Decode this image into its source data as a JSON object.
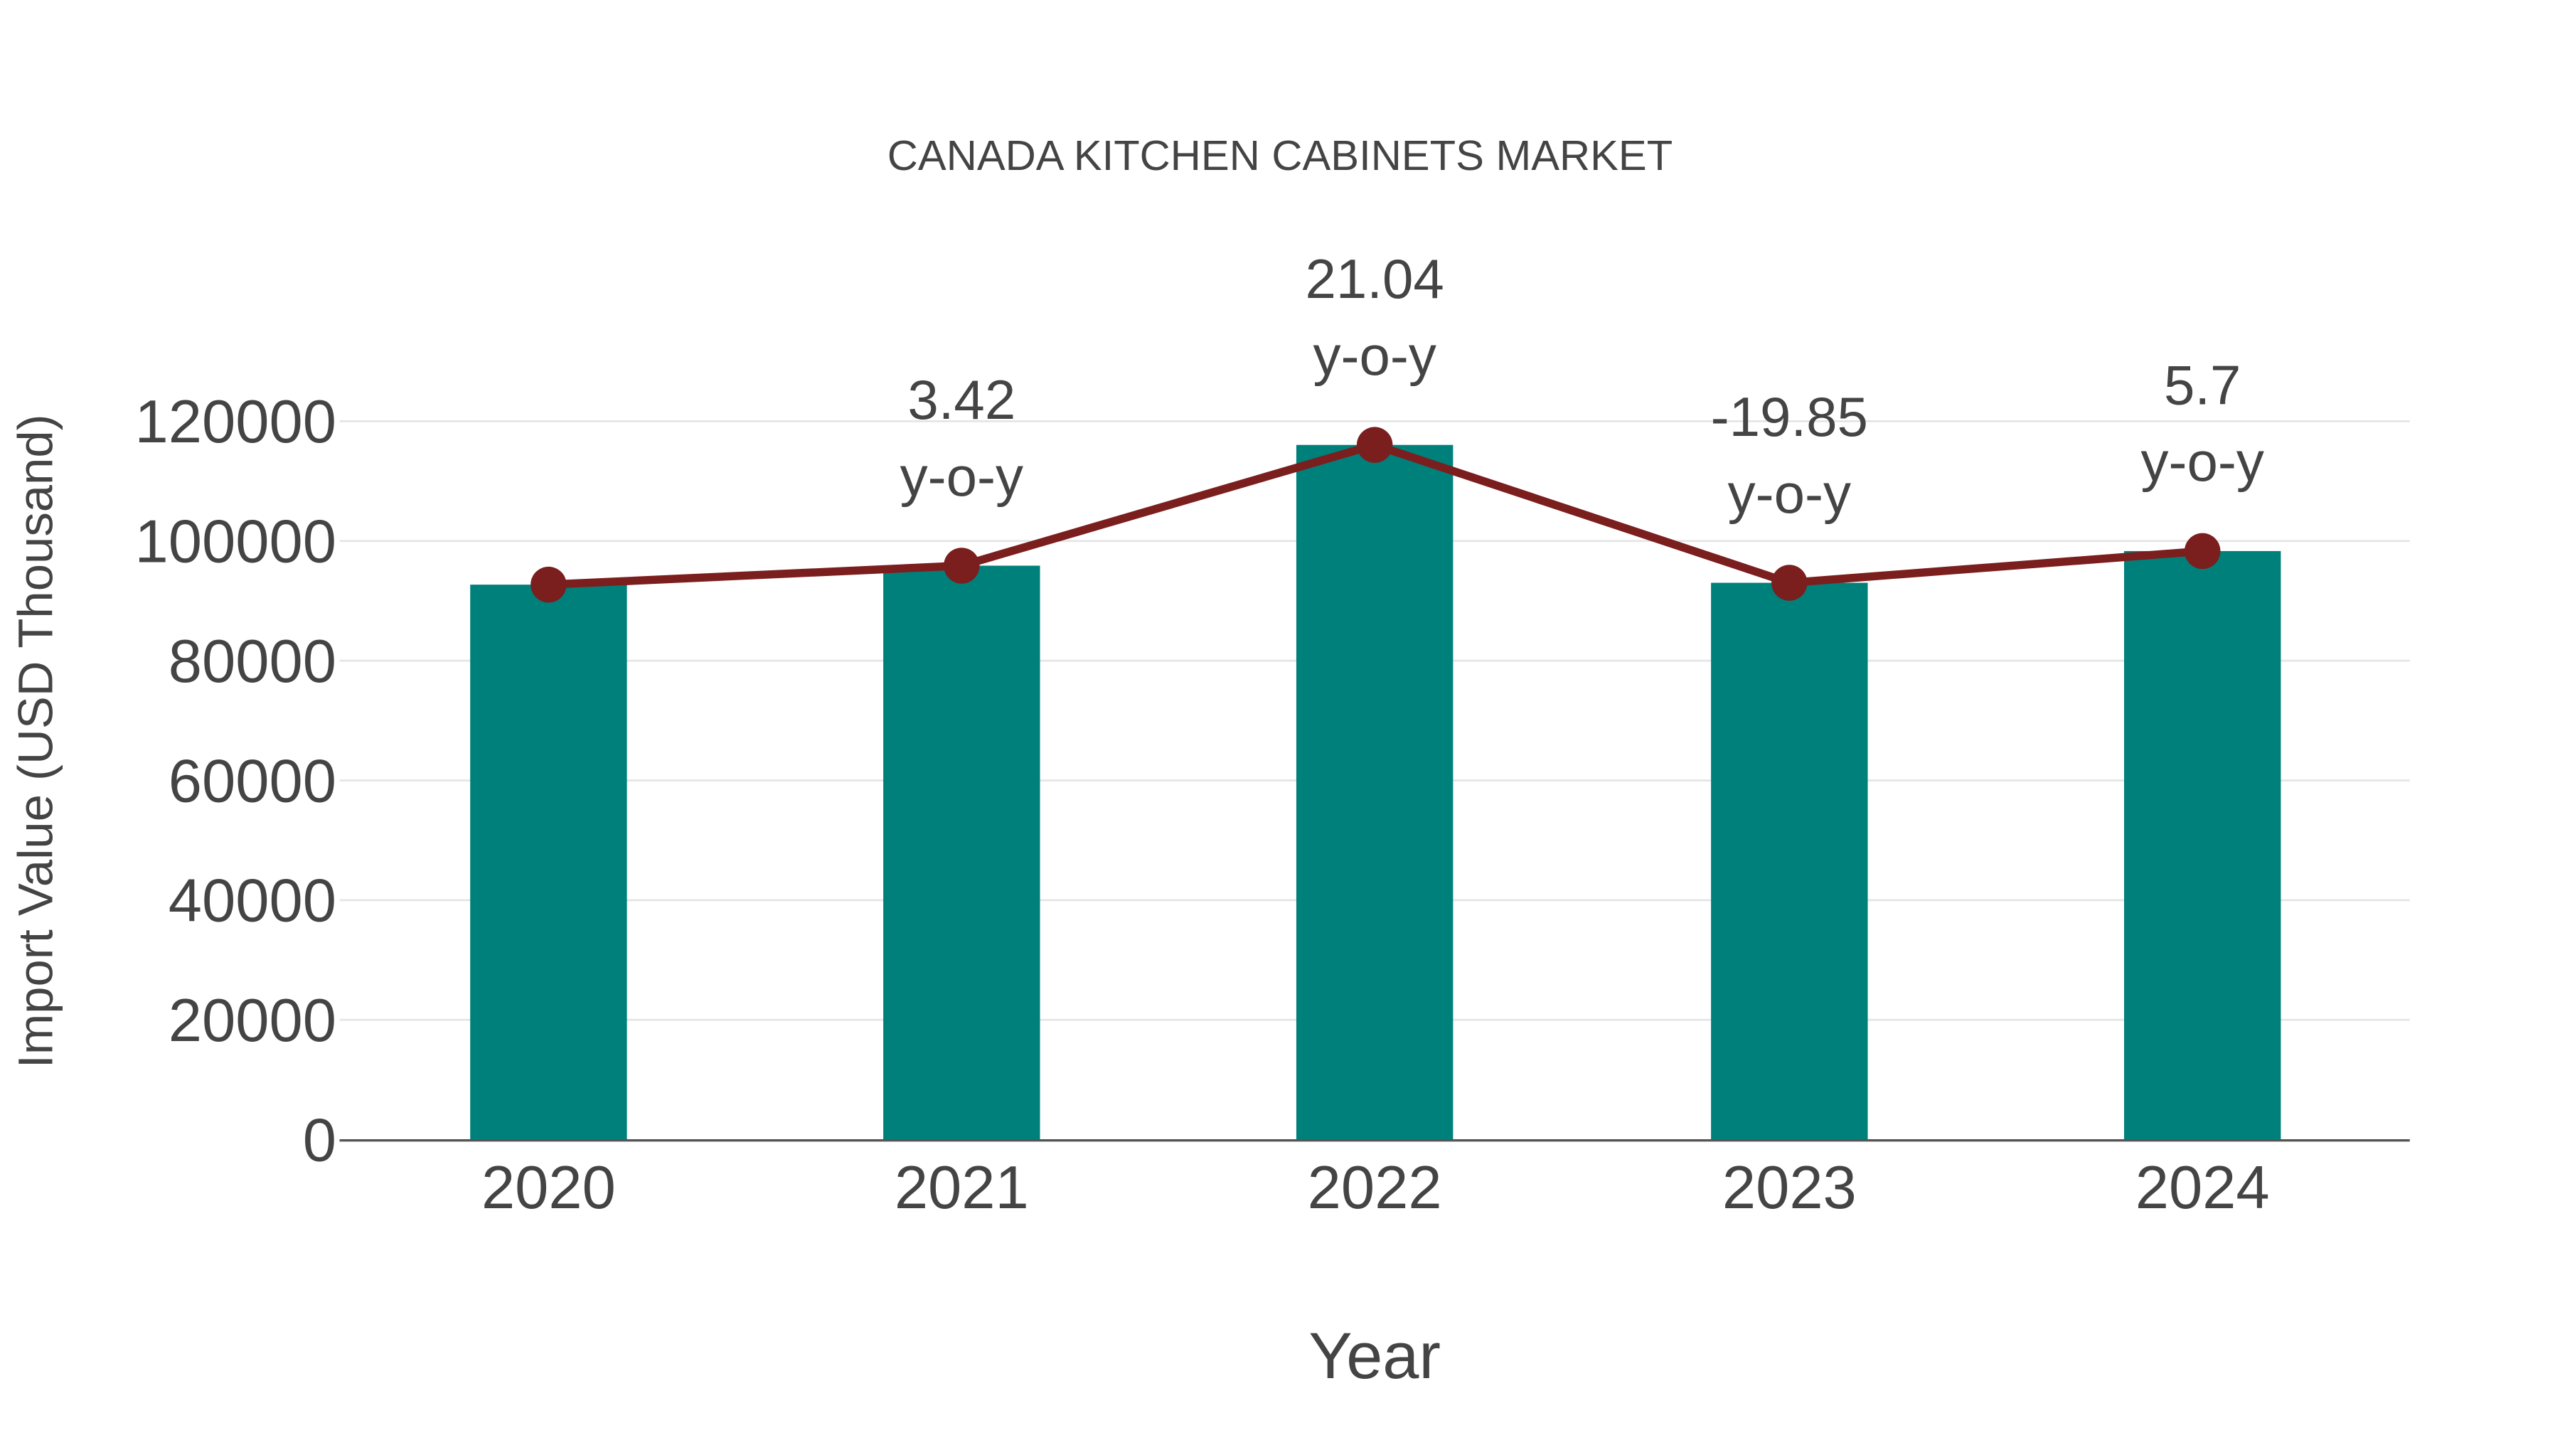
{
  "chart_data": {
    "type": "bar",
    "title": "CANADA KITCHEN CABINETS MARKET",
    "xlabel": "Year",
    "ylabel": "Import Value (USD Thousand)",
    "categories": [
      "2020",
      "2021",
      "2022",
      "2023",
      "2024"
    ],
    "series": [
      {
        "name": "Import Value",
        "type": "bar",
        "color": "#00807B",
        "values": [
          92700,
          95870,
          116040,
          93010,
          98310
        ]
      },
      {
        "name": "Trend",
        "type": "line",
        "color": "#7B1E1E",
        "values": [
          92700,
          95870,
          116040,
          93010,
          98310
        ]
      }
    ],
    "annotations": [
      {
        "category": "2021",
        "value": "3.42",
        "suffix": "y-o-y"
      },
      {
        "category": "2022",
        "value": "21.04",
        "suffix": "y-o-y"
      },
      {
        "category": "2023",
        "value": "-19.85",
        "suffix": "y-o-y"
      },
      {
        "category": "2024",
        "value": "5.7",
        "suffix": "y-o-y"
      }
    ],
    "yticks": [
      "0",
      "20000",
      "40000",
      "60000",
      "80000",
      "100000",
      "120000"
    ],
    "ylim": [
      0,
      120000
    ],
    "grid": true,
    "legend": "none"
  },
  "colors": {
    "bar": "#00807B",
    "line": "#7B1E1E",
    "text": "#444444",
    "grid": "#E5E5E5",
    "axis": "#555555"
  }
}
